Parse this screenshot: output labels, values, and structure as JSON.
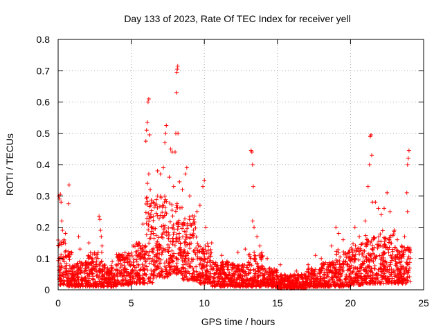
{
  "chart_data": {
    "type": "scatter",
    "title": "Day 133 of 2023, Rate Of TEC Index for receiver yell",
    "xlabel": "GPS time / hours",
    "ylabel": "ROTI / TECUs",
    "xlim": [
      0,
      25
    ],
    "ylim": [
      0,
      0.8
    ],
    "x_ticks": [
      0,
      5,
      10,
      15,
      20,
      25
    ],
    "y_ticks": [
      0,
      0.1,
      0.2,
      0.3,
      0.4,
      0.5,
      0.6,
      0.7,
      0.8
    ],
    "grid": true,
    "marker": "+",
    "color": "#ff0000",
    "series": [
      {
        "name": "ROTI",
        "points": [
          [
            0.05,
            0.3
          ],
          [
            0.1,
            0.29
          ],
          [
            0.15,
            0.305
          ],
          [
            0.2,
            0.28
          ],
          [
            0.25,
            0.22
          ],
          [
            0.3,
            0.19
          ],
          [
            0.4,
            0.16
          ],
          [
            0.5,
            0.18
          ],
          [
            0.7,
            0.275
          ],
          [
            0.75,
            0.335
          ],
          [
            0.9,
            0.12
          ],
          [
            1.4,
            0.17
          ],
          [
            1.5,
            0.13
          ],
          [
            2.1,
            0.15
          ],
          [
            2.3,
            0.1
          ],
          [
            2.8,
            0.235
          ],
          [
            2.85,
            0.225
          ],
          [
            2.9,
            0.19
          ],
          [
            2.95,
            0.17
          ],
          [
            3.0,
            0.14
          ],
          [
            3.7,
            0.09
          ],
          [
            4.2,
            0.11
          ],
          [
            5.5,
            0.15
          ],
          [
            5.8,
            0.21
          ],
          [
            6.0,
            0.475
          ],
          [
            6.05,
            0.51
          ],
          [
            6.1,
            0.535
          ],
          [
            6.15,
            0.6
          ],
          [
            6.2,
            0.61
          ],
          [
            6.25,
            0.495
          ],
          [
            6.1,
            0.34
          ],
          [
            6.2,
            0.37
          ],
          [
            6.3,
            0.32
          ],
          [
            6.5,
            0.28
          ],
          [
            6.8,
            0.38
          ],
          [
            7.0,
            0.37
          ],
          [
            7.2,
            0.39
          ],
          [
            7.3,
            0.47
          ],
          [
            7.35,
            0.5
          ],
          [
            7.4,
            0.525
          ],
          [
            7.6,
            0.36
          ],
          [
            7.7,
            0.45
          ],
          [
            7.8,
            0.44
          ],
          [
            7.9,
            0.33
          ],
          [
            8.0,
            0.44
          ],
          [
            8.05,
            0.5
          ],
          [
            8.1,
            0.63
          ],
          [
            8.12,
            0.695
          ],
          [
            8.15,
            0.705
          ],
          [
            8.18,
            0.715
          ],
          [
            8.2,
            0.5
          ],
          [
            8.3,
            0.345
          ],
          [
            8.5,
            0.32
          ],
          [
            8.7,
            0.37
          ],
          [
            8.8,
            0.39
          ],
          [
            9.0,
            0.3
          ],
          [
            9.3,
            0.21
          ],
          [
            9.5,
            0.25
          ],
          [
            9.7,
            0.27
          ],
          [
            9.9,
            0.33
          ],
          [
            10.0,
            0.35
          ],
          [
            10.1,
            0.2
          ],
          [
            10.5,
            0.15
          ],
          [
            11.2,
            0.11
          ],
          [
            12.3,
            0.12
          ],
          [
            12.8,
            0.13
          ],
          [
            13.2,
            0.445
          ],
          [
            13.25,
            0.44
          ],
          [
            13.3,
            0.4
          ],
          [
            13.35,
            0.33
          ],
          [
            13.3,
            0.22
          ],
          [
            13.4,
            0.2
          ],
          [
            13.6,
            0.17
          ],
          [
            13.8,
            0.14
          ],
          [
            14.3,
            0.1
          ],
          [
            15.2,
            0.08
          ],
          [
            16.3,
            0.06
          ],
          [
            17.1,
            0.08
          ],
          [
            17.6,
            0.11
          ],
          [
            18.0,
            0.1
          ],
          [
            18.7,
            0.14
          ],
          [
            19.0,
            0.2
          ],
          [
            19.2,
            0.18
          ],
          [
            19.5,
            0.16
          ],
          [
            19.9,
            0.12
          ],
          [
            20.3,
            0.2
          ],
          [
            20.6,
            0.17
          ],
          [
            21.0,
            0.22
          ],
          [
            21.2,
            0.33
          ],
          [
            21.3,
            0.4
          ],
          [
            21.35,
            0.49
          ],
          [
            21.4,
            0.495
          ],
          [
            21.45,
            0.43
          ],
          [
            21.5,
            0.28
          ],
          [
            21.7,
            0.28
          ],
          [
            21.9,
            0.26
          ],
          [
            22.1,
            0.24
          ],
          [
            22.3,
            0.26
          ],
          [
            22.5,
            0.31
          ],
          [
            22.7,
            0.25
          ],
          [
            23.0,
            0.19
          ],
          [
            23.2,
            0.16
          ],
          [
            23.5,
            0.14
          ],
          [
            23.7,
            0.17
          ],
          [
            23.85,
            0.31
          ],
          [
            23.9,
            0.4
          ],
          [
            23.95,
            0.42
          ],
          [
            24.0,
            0.445
          ],
          [
            23.9,
            0.25
          ],
          [
            24.0,
            0.13
          ]
        ],
        "bands": [
          [
            0.0,
            0.5,
            0.015,
            0.16
          ],
          [
            0.5,
            1.0,
            0.01,
            0.13
          ],
          [
            1.0,
            2.0,
            0.01,
            0.09
          ],
          [
            2.0,
            3.0,
            0.01,
            0.12
          ],
          [
            3.0,
            4.0,
            0.01,
            0.08
          ],
          [
            4.0,
            5.0,
            0.015,
            0.12
          ],
          [
            5.0,
            6.0,
            0.02,
            0.15
          ],
          [
            6.0,
            6.5,
            0.02,
            0.3
          ],
          [
            6.5,
            7.5,
            0.04,
            0.3
          ],
          [
            7.5,
            8.5,
            0.05,
            0.28
          ],
          [
            8.5,
            9.5,
            0.03,
            0.24
          ],
          [
            9.5,
            10.5,
            0.02,
            0.15
          ],
          [
            10.5,
            12.0,
            0.01,
            0.09
          ],
          [
            12.0,
            13.0,
            0.01,
            0.08
          ],
          [
            13.0,
            14.0,
            0.01,
            0.12
          ],
          [
            14.0,
            15.0,
            0.01,
            0.07
          ],
          [
            15.0,
            16.0,
            0.005,
            0.05
          ],
          [
            16.0,
            17.0,
            0.005,
            0.05
          ],
          [
            17.0,
            18.0,
            0.01,
            0.07
          ],
          [
            18.0,
            19.0,
            0.01,
            0.09
          ],
          [
            19.0,
            20.0,
            0.01,
            0.13
          ],
          [
            20.0,
            21.0,
            0.015,
            0.15
          ],
          [
            21.0,
            22.0,
            0.02,
            0.18
          ],
          [
            22.0,
            23.0,
            0.02,
            0.19
          ],
          [
            23.0,
            24.1,
            0.02,
            0.14
          ]
        ]
      }
    ]
  }
}
